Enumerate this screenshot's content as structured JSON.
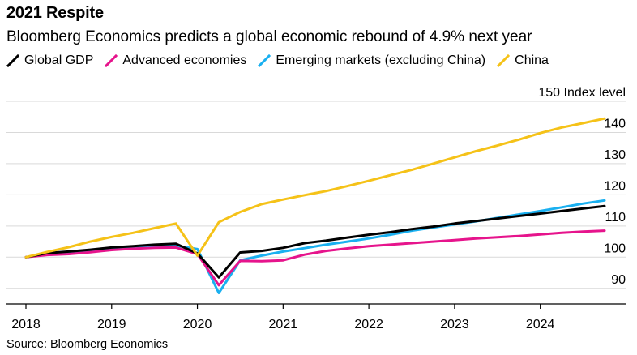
{
  "header": {
    "title": "2021 Respite",
    "subtitle": "Bloomberg Economics predicts a global economic rebound of 4.9% next year"
  },
  "footer": {
    "source": "Source: Bloomberg Economics"
  },
  "colors": {
    "global_gdp": "#000000",
    "advanced": "#e6148c",
    "emerging": "#1ab0f0",
    "china": "#f5c218",
    "grid": "#d9d9d9",
    "axis": "#000000"
  },
  "chart_data": {
    "type": "line",
    "title": "2021 Respite",
    "subtitle": "Bloomberg Economics predicts a global economic rebound of 4.9% next year",
    "ylabel": "Index level",
    "ylim": [
      85,
      150
    ],
    "xlim": [
      2018,
      2024.75
    ],
    "y_ticks": [
      90,
      100,
      110,
      120,
      130,
      140,
      150
    ],
    "y_tick_labels": [
      "90",
      "100",
      "110",
      "120",
      "130",
      "140",
      "150 Index level"
    ],
    "x_ticks": [
      2018,
      2019,
      2020,
      2021,
      2022,
      2023,
      2024
    ],
    "x_tick_labels": [
      "2018",
      "2019",
      "2020",
      "2021",
      "2022",
      "2023",
      "2024"
    ],
    "grid": true,
    "legend_position": "top-left",
    "x": [
      2018,
      2018.25,
      2018.5,
      2018.75,
      2019,
      2019.25,
      2019.5,
      2019.75,
      2020,
      2020.25,
      2020.5,
      2020.75,
      2021,
      2021.25,
      2021.5,
      2021.75,
      2022,
      2022.25,
      2022.5,
      2022.75,
      2023,
      2023.25,
      2023.5,
      2023.75,
      2024,
      2024.25,
      2024.5,
      2024.75
    ],
    "series": [
      {
        "name": "Global GDP",
        "color_key": "global_gdp",
        "values": [
          100,
          101.3,
          101.8,
          102.4,
          103.1,
          103.5,
          104.0,
          104.3,
          101.2,
          93.5,
          101.5,
          102.0,
          103.0,
          104.5,
          105.3,
          106.3,
          107.2,
          108.0,
          109.0,
          109.8,
          110.8,
          111.6,
          112.4,
          113.2,
          114.0,
          114.8,
          115.6,
          116.4
        ]
      },
      {
        "name": "Advanced economies",
        "color_key": "advanced",
        "values": [
          100,
          100.7,
          101.0,
          101.6,
          102.3,
          102.7,
          103.0,
          103.1,
          101.0,
          91.0,
          98.8,
          98.7,
          99.0,
          100.8,
          102.0,
          102.8,
          103.5,
          104.0,
          104.5,
          105.0,
          105.5,
          106.0,
          106.4,
          106.8,
          107.3,
          107.8,
          108.2,
          108.5
        ]
      },
      {
        "name": "Emerging markets (excluding China)",
        "color_key": "emerging",
        "values": [
          100,
          100.9,
          101.4,
          101.8,
          102.4,
          102.9,
          103.4,
          103.7,
          102.6,
          88.5,
          99.0,
          100.5,
          101.8,
          102.9,
          104.0,
          105.0,
          106.0,
          107.2,
          108.5,
          109.5,
          110.5,
          111.5,
          112.6,
          113.7,
          114.8,
          116.0,
          117.2,
          118.2
        ]
      },
      {
        "name": "China",
        "color_key": "china",
        "values": [
          100,
          101.7,
          103.2,
          105.0,
          106.5,
          107.8,
          109.3,
          110.8,
          100.5,
          111.2,
          114.5,
          117.0,
          118.5,
          119.9,
          121.2,
          122.8,
          124.5,
          126.3,
          128.0,
          130.0,
          132.0,
          134.0,
          135.8,
          137.7,
          139.8,
          141.6,
          143.0,
          144.5
        ]
      }
    ]
  }
}
